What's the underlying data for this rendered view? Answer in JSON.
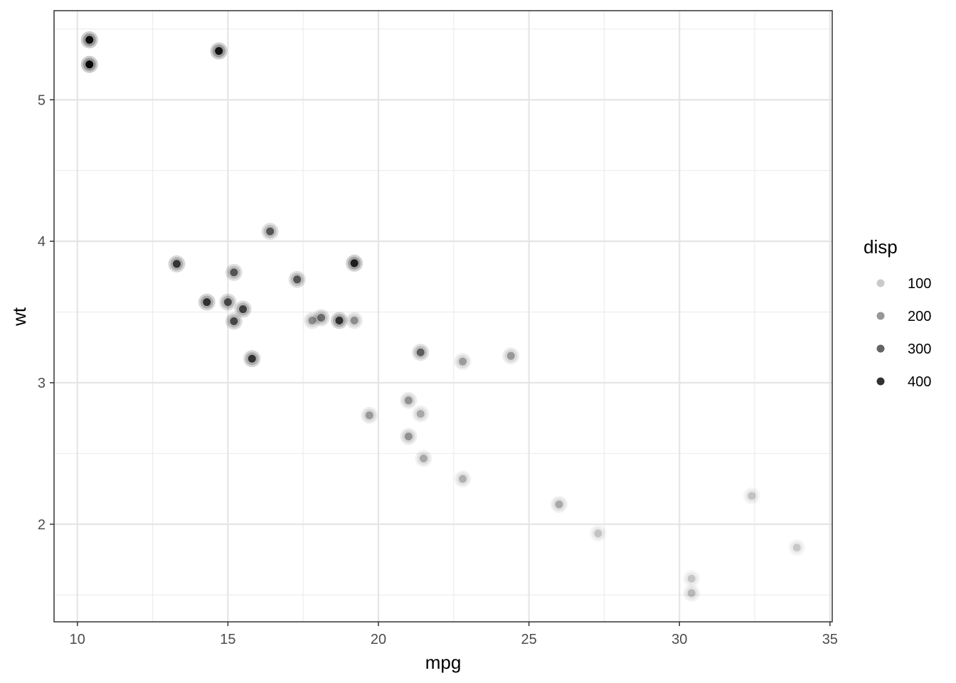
{
  "chart_data": {
    "type": "scatter",
    "xlabel": "mpg",
    "ylabel": "wt",
    "xlim": [
      9.225,
      35.075
    ],
    "ylim": [
      1.31,
      5.63
    ],
    "x_ticks": [
      10,
      15,
      20,
      25,
      30,
      35
    ],
    "y_ticks": [
      2,
      3,
      4,
      5
    ],
    "x_tick_labels": [
      "10",
      "15",
      "20",
      "25",
      "30",
      "35"
    ],
    "y_tick_labels": [
      "2",
      "3",
      "4",
      "5"
    ],
    "grid": true,
    "legend": {
      "title": "disp",
      "placement": "right",
      "entries": [
        {
          "label": "100",
          "value": 100
        },
        {
          "label": "200",
          "value": 200
        },
        {
          "label": "300",
          "value": 300
        },
        {
          "label": "400",
          "value": 400
        }
      ]
    },
    "alpha_mapping": "disp",
    "alpha_range": [
      0.15,
      0.95
    ],
    "disp_range": [
      71.1,
      472
    ],
    "points": [
      {
        "x": 21.0,
        "y": 2.62,
        "disp": 160
      },
      {
        "x": 21.0,
        "y": 2.875,
        "disp": 160
      },
      {
        "x": 22.8,
        "y": 2.32,
        "disp": 108
      },
      {
        "x": 21.4,
        "y": 3.215,
        "disp": 258
      },
      {
        "x": 18.7,
        "y": 3.44,
        "disp": 360
      },
      {
        "x": 18.1,
        "y": 3.46,
        "disp": 225
      },
      {
        "x": 14.3,
        "y": 3.57,
        "disp": 360
      },
      {
        "x": 24.4,
        "y": 3.19,
        "disp": 146.7
      },
      {
        "x": 22.8,
        "y": 3.15,
        "disp": 140.8
      },
      {
        "x": 19.2,
        "y": 3.44,
        "disp": 167.6
      },
      {
        "x": 17.8,
        "y": 3.44,
        "disp": 167.6
      },
      {
        "x": 16.4,
        "y": 4.07,
        "disp": 275.8
      },
      {
        "x": 17.3,
        "y": 3.73,
        "disp": 275.8
      },
      {
        "x": 15.2,
        "y": 3.78,
        "disp": 275.8
      },
      {
        "x": 10.4,
        "y": 5.25,
        "disp": 472
      },
      {
        "x": 10.4,
        "y": 5.424,
        "disp": 460
      },
      {
        "x": 14.7,
        "y": 5.345,
        "disp": 440
      },
      {
        "x": 32.4,
        "y": 2.2,
        "disp": 78.7
      },
      {
        "x": 30.4,
        "y": 1.615,
        "disp": 75.7
      },
      {
        "x": 33.9,
        "y": 1.835,
        "disp": 71.1
      },
      {
        "x": 21.5,
        "y": 2.465,
        "disp": 120.1
      },
      {
        "x": 15.5,
        "y": 3.52,
        "disp": 318
      },
      {
        "x": 15.2,
        "y": 3.435,
        "disp": 304
      },
      {
        "x": 13.3,
        "y": 3.84,
        "disp": 350
      },
      {
        "x": 19.2,
        "y": 3.845,
        "disp": 400
      },
      {
        "x": 27.3,
        "y": 1.935,
        "disp": 79
      },
      {
        "x": 26.0,
        "y": 2.14,
        "disp": 120.3
      },
      {
        "x": 30.4,
        "y": 1.513,
        "disp": 95.1
      },
      {
        "x": 15.8,
        "y": 3.17,
        "disp": 351
      },
      {
        "x": 19.7,
        "y": 2.77,
        "disp": 145
      },
      {
        "x": 15.0,
        "y": 3.57,
        "disp": 301
      },
      {
        "x": 21.4,
        "y": 2.78,
        "disp": 121
      }
    ]
  }
}
